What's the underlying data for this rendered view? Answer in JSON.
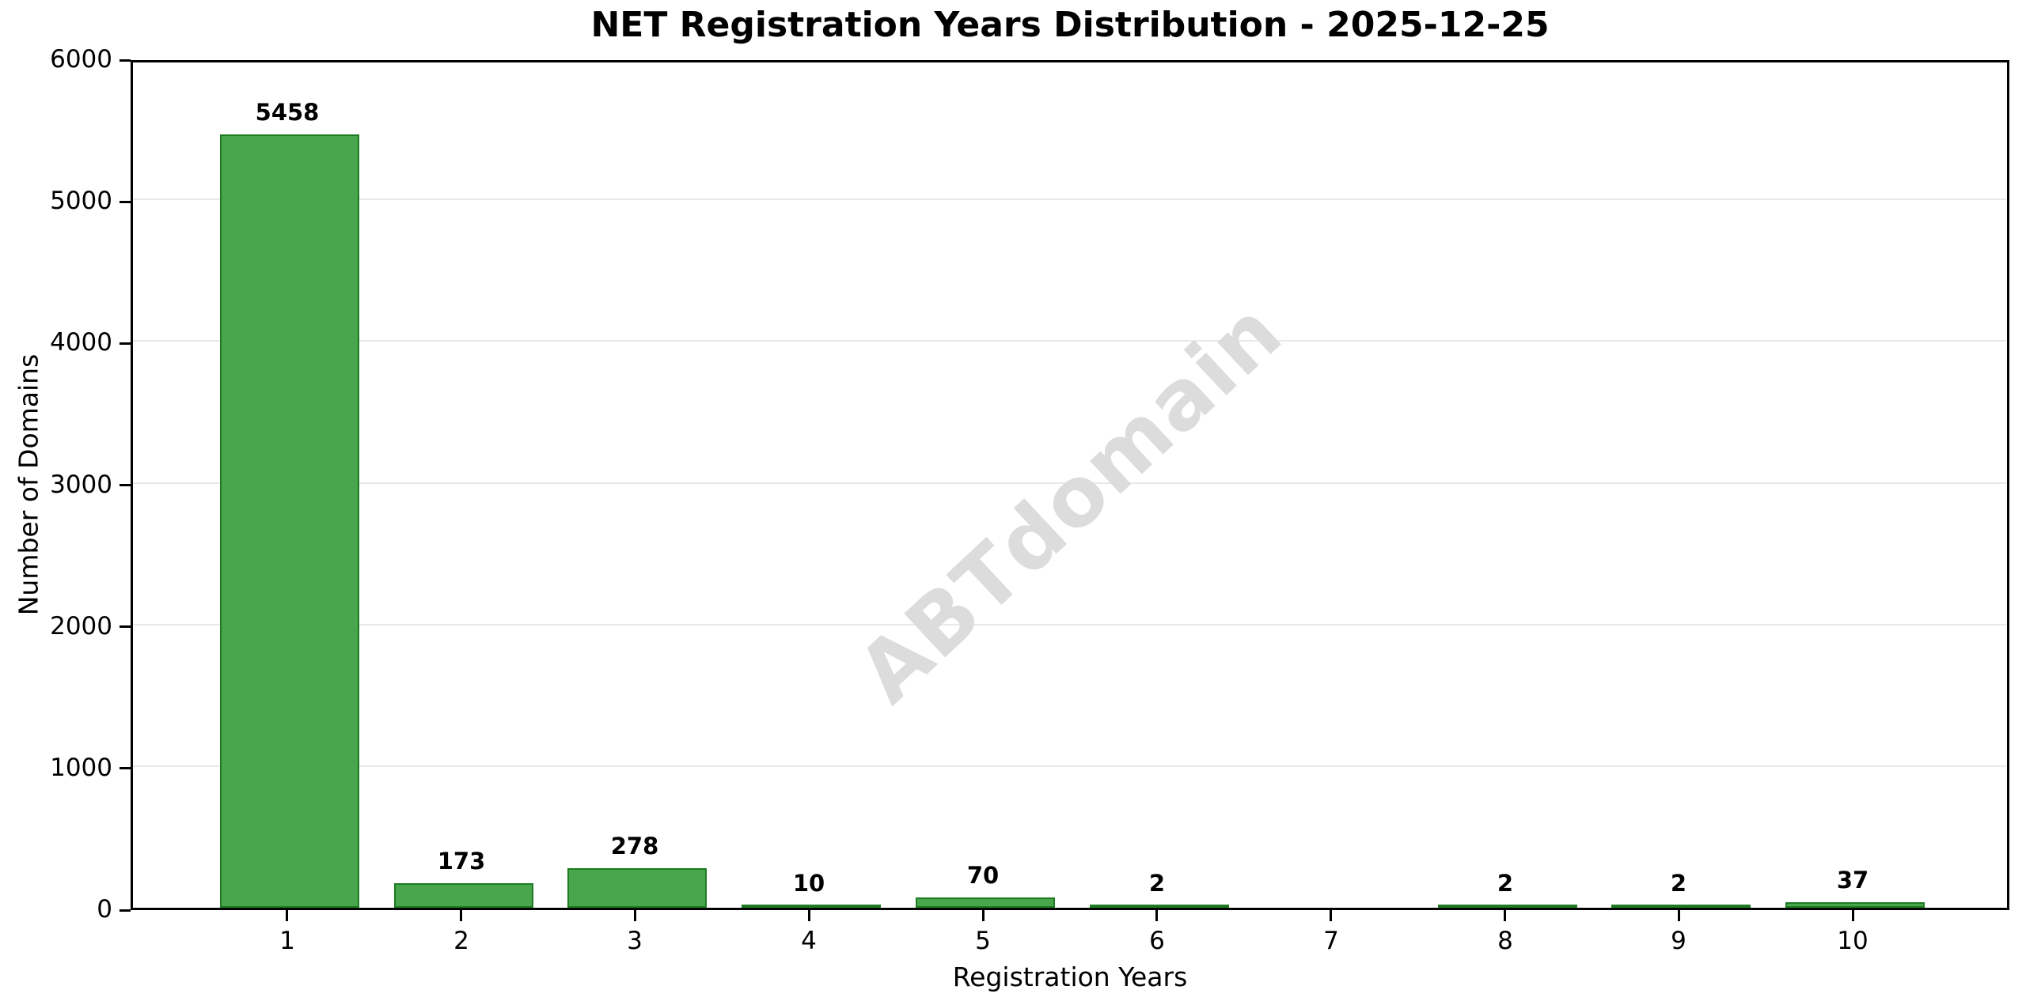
{
  "title": "NET Registration Years Distribution - 2025-12-25",
  "watermark": "ABTdomain",
  "chart_data": {
    "type": "bar",
    "title": "NET Registration Years Distribution - 2025-12-25",
    "xlabel": "Registration Years",
    "ylabel": "Number of Domains",
    "categories": [
      "1",
      "2",
      "3",
      "4",
      "5",
      "6",
      "7",
      "8",
      "9",
      "10"
    ],
    "values": [
      5458,
      173,
      278,
      10,
      70,
      2,
      0,
      2,
      2,
      37
    ],
    "bar_labels": [
      "5458",
      "173",
      "278",
      "10",
      "70",
      "2",
      "",
      "2",
      "2",
      "37"
    ],
    "ylim": [
      0,
      6000
    ],
    "yticks": [
      0,
      1000,
      2000,
      3000,
      4000,
      5000,
      6000
    ],
    "xlim": [
      0.1,
      10.9
    ],
    "bar_width_units": 0.8,
    "grid": "horizontal",
    "legend_position": "none",
    "bar_color": "#4aa64d",
    "bar_edge_color": "#1d7c21",
    "grid_color": "#e8e8e8",
    "watermark_color": "#dcdcdc",
    "watermark_text": "ABTdomain"
  }
}
